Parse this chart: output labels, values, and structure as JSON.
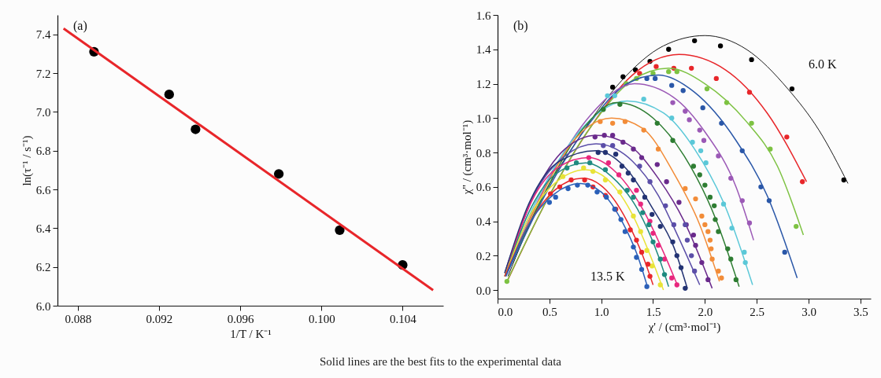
{
  "chart_data": [
    {
      "type": "scatter",
      "xlabel": "1/T / K⁻¹",
      "ylabel": "ln(τ⁻¹ / s⁻¹)",
      "xlim": [
        0.087,
        0.106
      ],
      "ylim": [
        6.0,
        7.5
      ],
      "xticks": [
        0.088,
        0.092,
        0.096,
        {
          "value": 0.1,
          "label": "0.100"
        },
        0.104
      ],
      "yticks": [
        {
          "value": 6,
          "label": "6.0"
        },
        6.2,
        6.4,
        6.6,
        6.8,
        {
          "value": 7,
          "label": "7.0"
        },
        7.2,
        7.4
      ],
      "annotations": [
        "(a)",
        "Solid lines are the best fits to the experimental data"
      ],
      "series": [
        {
          "color": "#000000",
          "x": [
            0.0888,
            0.0925,
            0.0938,
            0.0979,
            0.1009,
            0.104
          ],
          "values": [
            7.31,
            7.09,
            6.91,
            6.68,
            6.39,
            6.21
          ]
        },
        {
          "type": "line",
          "color": "#e8262a",
          "x": [
            0.0873,
            0.1055
          ],
          "values": [
            7.43,
            6.08
          ]
        }
      ]
    },
    {
      "type": "scatter",
      "xlabel": "χ' / (cm³·mol⁻¹)",
      "ylabel": "χ'' / (cm³·mol⁻¹)",
      "xlim": [
        0,
        3.6
      ],
      "ylim": [
        -0.05,
        1.6
      ],
      "xticks": [
        {
          "value": 0,
          "label": "0.0"
        },
        0.5,
        {
          "value": 1,
          "label": "1.0"
        },
        1.5,
        {
          "value": 2,
          "label": "2.0"
        },
        2.5,
        {
          "value": 3,
          "label": "3.0"
        },
        3.5
      ],
      "yticks": [
        {
          "value": 0,
          "label": "0.0"
        },
        0.2,
        0.4,
        0.6,
        0.8,
        {
          "value": 1,
          "label": "1.0"
        },
        1.2,
        1.4,
        1.6
      ],
      "annotations": [
        "(b)",
        "6.0 K",
        "13.5 K"
      ],
      "series": [
        {
          "type": "line",
          "color": "#000000",
          "x": [
            0.1,
            0.4,
            0.8,
            1.2,
            1.6,
            2.0,
            2.4,
            2.8,
            3.1,
            3.38
          ],
          "values": [
            0.08,
            0.5,
            0.9,
            1.22,
            1.42,
            1.48,
            1.4,
            1.17,
            0.93,
            0.62
          ]
        },
        {
          "color": "#000000",
          "x": [
            1.11,
            1.21,
            1.33,
            1.47,
            1.65,
            1.9,
            2.15,
            2.45,
            2.84,
            3.34
          ],
          "values": [
            1.18,
            1.24,
            1.28,
            1.33,
            1.4,
            1.45,
            1.42,
            1.34,
            1.17,
            0.64
          ]
        },
        {
          "type": "line",
          "color": "#e8262a",
          "x": [
            0.1,
            0.5,
            0.9,
            1.3,
            1.75,
            2.2,
            2.6,
            2.98
          ],
          "values": [
            0.06,
            0.55,
            0.95,
            1.25,
            1.37,
            1.28,
            1.03,
            0.63
          ]
        },
        {
          "color": "#e8262a",
          "x": [
            1.37,
            1.53,
            1.7,
            1.87,
            2.11,
            2.43,
            2.79,
            2.94
          ],
          "values": [
            1.26,
            1.3,
            1.29,
            1.29,
            1.23,
            1.15,
            0.89,
            0.63
          ]
        },
        {
          "type": "line",
          "color": "#7dc242",
          "x": [
            0.09,
            0.5,
            0.9,
            1.3,
            1.65,
            2.0,
            2.4,
            2.7,
            2.95
          ],
          "values": [
            0.05,
            0.55,
            0.95,
            1.22,
            1.29,
            1.2,
            0.98,
            0.72,
            0.32
          ]
        },
        {
          "color": "#7dc242",
          "x": [
            0.09,
            1.24,
            1.34,
            1.5,
            1.65,
            1.73,
            2.02,
            2.21,
            2.45,
            2.63,
            2.88
          ],
          "values": [
            0.05,
            1.2,
            1.23,
            1.26,
            1.27,
            1.27,
            1.17,
            1.09,
            0.97,
            0.82,
            0.37
          ]
        },
        {
          "type": "line",
          "color": "#2a57a8",
          "x": [
            0.08,
            0.5,
            0.9,
            1.25,
            1.55,
            1.9,
            2.3,
            2.6,
            2.89
          ],
          "values": [
            0.08,
            0.6,
            0.98,
            1.2,
            1.25,
            1.15,
            0.87,
            0.55,
            0.07
          ]
        },
        {
          "color": "#2a57a8",
          "x": [
            1.44,
            1.52,
            1.68,
            1.79,
            1.98,
            2.16,
            2.36,
            2.54,
            2.62,
            2.77
          ],
          "values": [
            1.23,
            1.23,
            1.19,
            1.16,
            1.06,
            0.97,
            0.81,
            0.6,
            0.52,
            0.22
          ]
        },
        {
          "type": "line",
          "color": "#9b59b6",
          "x": [
            0.08,
            0.5,
            0.9,
            1.32,
            1.7,
            2.0,
            2.3,
            2.47
          ],
          "values": [
            0.1,
            0.65,
            1.02,
            1.2,
            1.12,
            0.92,
            0.6,
            0.29
          ]
        },
        {
          "color": "#9b59b6",
          "x": [
            1.69,
            1.81,
            1.85,
            1.95,
            1.99,
            2.13,
            2.25,
            2.36,
            2.43
          ],
          "values": [
            1.09,
            1.04,
            0.99,
            0.93,
            0.87,
            0.78,
            0.65,
            0.52,
            0.39
          ]
        },
        {
          "type": "line",
          "color": "#5bc8d8",
          "x": [
            0.07,
            0.4,
            0.8,
            1.25,
            1.6,
            1.9,
            2.2,
            2.46
          ],
          "values": [
            0.1,
            0.55,
            0.93,
            1.1,
            1.03,
            0.82,
            0.48,
            0.03
          ]
        },
        {
          "color": "#5bc8d8",
          "x": [
            1.06,
            1.13,
            1.41,
            1.68,
            1.88,
            1.96,
            2.01,
            2.18,
            2.26,
            2.38,
            2.39
          ],
          "values": [
            1.13,
            1.13,
            1.11,
            1.0,
            0.86,
            0.81,
            0.74,
            0.5,
            0.36,
            0.22,
            0.16
          ]
        },
        {
          "type": "line",
          "color": "#2e7d32",
          "x": [
            0.07,
            0.4,
            0.8,
            1.15,
            1.5,
            1.8,
            2.1,
            2.33
          ],
          "values": [
            0.08,
            0.5,
            0.92,
            1.09,
            1.0,
            0.78,
            0.42,
            0.02
          ]
        },
        {
          "color": "#2e7d32",
          "x": [
            1.02,
            1.18,
            1.54,
            1.69,
            1.89,
            1.95,
            2.0,
            2.05,
            2.09,
            2.1,
            2.13,
            2.22,
            2.25,
            2.3
          ],
          "values": [
            1.05,
            1.08,
            0.97,
            0.87,
            0.72,
            0.67,
            0.61,
            0.54,
            0.49,
            0.41,
            0.34,
            0.24,
            0.18,
            0.06
          ]
        },
        {
          "type": "line",
          "color": "#f28c38",
          "x": [
            0.07,
            0.4,
            0.75,
            1.1,
            1.4,
            1.7,
            1.95,
            2.14
          ],
          "values": [
            0.08,
            0.52,
            0.88,
            1.0,
            0.94,
            0.68,
            0.38,
            0.05
          ]
        },
        {
          "color": "#f28c38",
          "x": [
            0.99,
            1.11,
            1.23,
            1.41,
            1.55,
            1.81,
            1.91,
            1.97,
            2.0,
            2.03,
            2.05,
            2.06,
            2.07,
            2.13,
            2.16
          ],
          "values": [
            0.98,
            0.97,
            0.98,
            0.93,
            0.82,
            0.59,
            0.53,
            0.43,
            0.38,
            0.34,
            0.29,
            0.24,
            0.18,
            0.11,
            0.07
          ]
        },
        {
          "type": "line",
          "color": "#6a2a8c",
          "x": [
            0.07,
            0.35,
            0.65,
            0.95,
            1.25,
            1.55,
            1.8,
            2.07
          ],
          "values": [
            0.1,
            0.55,
            0.82,
            0.9,
            0.85,
            0.65,
            0.4,
            0.01
          ]
        },
        {
          "color": "#6a2a8c",
          "x": [
            0.94,
            1.03,
            1.11,
            1.21,
            1.31,
            1.39,
            1.54,
            1.63,
            1.75,
            1.82,
            1.89,
            1.91,
            1.97,
            2.03
          ],
          "values": [
            0.89,
            0.9,
            0.9,
            0.86,
            0.82,
            0.77,
            0.73,
            0.63,
            0.51,
            0.38,
            0.32,
            0.26,
            0.16,
            0.06
          ]
        },
        {
          "type": "line",
          "color": "#5b4ea8",
          "x": [
            0.07,
            0.35,
            0.65,
            0.95,
            1.3,
            1.55,
            1.75,
            1.95
          ],
          "values": [
            0.1,
            0.55,
            0.78,
            0.85,
            0.75,
            0.55,
            0.3,
            0.03
          ]
        },
        {
          "color": "#5b4ea8",
          "x": [
            1.02,
            1.11,
            1.37,
            1.47,
            1.62,
            1.7,
            1.81,
            1.83,
            1.87,
            1.9
          ],
          "values": [
            0.84,
            0.84,
            0.72,
            0.63,
            0.49,
            0.38,
            0.38,
            0.29,
            0.2,
            0.11
          ]
        },
        {
          "type": "line",
          "color": "#233373",
          "x": [
            0.07,
            0.3,
            0.6,
            0.95,
            1.25,
            1.5,
            1.7,
            1.83
          ],
          "values": [
            0.1,
            0.5,
            0.75,
            0.81,
            0.7,
            0.47,
            0.25,
            0.01
          ]
        },
        {
          "color": "#233373",
          "x": [
            0.97,
            1.04,
            1.14,
            1.2,
            1.26,
            1.31,
            1.42,
            1.49,
            1.57,
            1.69,
            1.73,
            1.77,
            1.81
          ],
          "values": [
            0.8,
            0.8,
            0.79,
            0.72,
            0.68,
            0.64,
            0.54,
            0.44,
            0.37,
            0.28,
            0.2,
            0.13,
            0.01
          ]
        },
        {
          "type": "line",
          "color": "#e8277d",
          "x": [
            0.07,
            0.3,
            0.6,
            0.88,
            1.15,
            1.4,
            1.6,
            1.74
          ],
          "values": [
            0.08,
            0.48,
            0.72,
            0.77,
            0.68,
            0.47,
            0.22,
            0.02
          ]
        },
        {
          "color": "#e8277d",
          "x": [
            0.88,
            1.07,
            1.17,
            1.34,
            1.38,
            1.47,
            1.5,
            1.55,
            1.61,
            1.68,
            1.73
          ],
          "values": [
            0.77,
            0.74,
            0.67,
            0.58,
            0.5,
            0.4,
            0.33,
            0.26,
            0.18,
            0.07,
            0.03
          ]
        },
        {
          "type": "line",
          "color": "#1f8a80",
          "x": [
            0.07,
            0.3,
            0.55,
            0.85,
            1.1,
            1.35,
            1.55,
            1.65
          ],
          "values": [
            0.08,
            0.45,
            0.67,
            0.74,
            0.66,
            0.47,
            0.2,
            0.02
          ]
        },
        {
          "color": "#1f8a80",
          "x": [
            0.67,
            0.76,
            0.89,
            1.04,
            1.25,
            1.31,
            1.4,
            1.46,
            1.5,
            1.57,
            1.61
          ],
          "values": [
            0.71,
            0.74,
            0.74,
            0.7,
            0.58,
            0.54,
            0.45,
            0.38,
            0.28,
            0.18,
            0.09
          ]
        },
        {
          "type": "line",
          "color": "#e8e337",
          "x": [
            0.07,
            0.3,
            0.55,
            0.85,
            1.1,
            1.3,
            1.5,
            1.6
          ],
          "values": [
            0.08,
            0.42,
            0.62,
            0.7,
            0.62,
            0.44,
            0.16,
            0.0
          ]
        },
        {
          "color": "#e8e337",
          "x": [
            0.63,
            0.83,
            0.92,
            1.04,
            1.18,
            1.31,
            1.38,
            1.44,
            1.49,
            1.57
          ],
          "values": [
            0.66,
            0.71,
            0.69,
            0.64,
            0.57,
            0.43,
            0.34,
            0.23,
            0.14,
            0.03
          ]
        },
        {
          "type": "line",
          "color": "#e8262a",
          "x": [
            0.07,
            0.3,
            0.55,
            0.82,
            1.05,
            1.25,
            1.4,
            1.5
          ],
          "values": [
            0.08,
            0.38,
            0.58,
            0.65,
            0.58,
            0.4,
            0.2,
            0.03
          ]
        },
        {
          "color": "#e8262a",
          "x": [
            0.51,
            0.6,
            0.71,
            0.84,
            0.92,
            1.04,
            1.14,
            1.28,
            1.34,
            1.39,
            1.45,
            1.47
          ],
          "values": [
            0.56,
            0.6,
            0.64,
            0.64,
            0.6,
            0.55,
            0.47,
            0.35,
            0.29,
            0.22,
            0.15,
            0.08
          ]
        },
        {
          "type": "line",
          "color": "#2a5fb8",
          "x": [
            0.08,
            0.3,
            0.55,
            0.8,
            1.0,
            1.2,
            1.35,
            1.45
          ],
          "values": [
            0.08,
            0.38,
            0.56,
            0.62,
            0.57,
            0.4,
            0.2,
            0.01
          ]
        },
        {
          "color": "#2a5fb8",
          "x": [
            0.5,
            0.56,
            0.68,
            0.77,
            0.87,
            0.96,
            1.05,
            1.13,
            1.19,
            1.23,
            1.31,
            1.34,
            1.39,
            1.44
          ],
          "values": [
            0.51,
            0.54,
            0.59,
            0.61,
            0.61,
            0.57,
            0.54,
            0.47,
            0.41,
            0.34,
            0.25,
            0.19,
            0.12,
            0.02
          ]
        }
      ]
    }
  ]
}
